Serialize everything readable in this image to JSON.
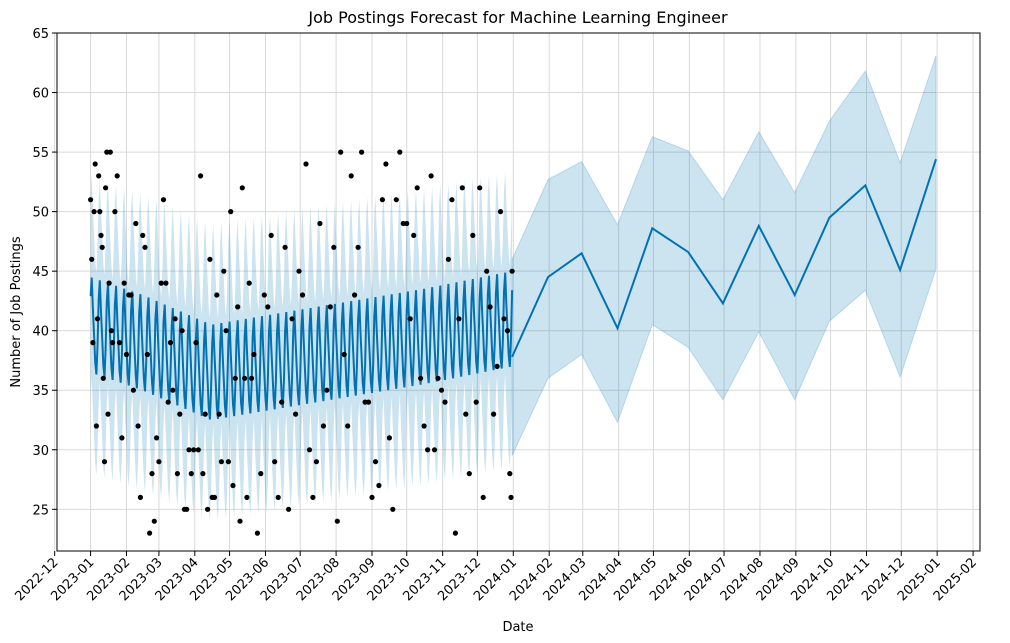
{
  "chart_data": {
    "type": "line",
    "title": "Job Postings Forecast for Machine Learning Engineer",
    "xlabel": "Date",
    "ylabel": "Number of Job Postings",
    "ylim": [
      21.5,
      65
    ],
    "xlim": [
      "2022-12-03",
      "2025-02-07"
    ],
    "grid": true,
    "x_tick_labels": [
      "2022-12",
      "2023-01",
      "2023-02",
      "2023-03",
      "2023-04",
      "2023-05",
      "2023-06",
      "2023-07",
      "2023-08",
      "2023-09",
      "2023-10",
      "2023-11",
      "2023-12",
      "2024-01",
      "2024-02",
      "2024-03",
      "2024-04",
      "2024-05",
      "2024-06",
      "2024-07",
      "2024-08",
      "2024-09",
      "2024-10",
      "2024-11",
      "2024-12",
      "2025-01",
      "2025-02"
    ],
    "y_ticks": [
      25,
      30,
      35,
      40,
      45,
      50,
      55,
      60,
      65
    ],
    "colors": {
      "forecast_line": "#0072B2",
      "uncertainty_band": "#0072B2",
      "observed_points": "#000000",
      "grid": "#d9d9d9"
    },
    "history_period": {
      "start": "2023-01-01",
      "end": "2023-12-31",
      "frequency": "daily"
    },
    "history_trend": [
      {
        "date": "2023-01-01",
        "center": 40.5,
        "half_amplitude": 4.0
      },
      {
        "date": "2023-02-15",
        "center": 39.0,
        "half_amplitude": 4.0
      },
      {
        "date": "2023-04-15",
        "center": 36.5,
        "half_amplitude": 4.0
      },
      {
        "date": "2023-06-15",
        "center": 37.5,
        "half_amplitude": 4.0
      },
      {
        "date": "2023-08-15",
        "center": 38.5,
        "half_amplitude": 4.0
      },
      {
        "date": "2023-10-15",
        "center": 39.5,
        "half_amplitude": 4.0
      },
      {
        "date": "2023-12-31",
        "center": 41.0,
        "half_amplitude": 4.0
      }
    ],
    "history_band_halfwidth": 8.5,
    "series": [
      {
        "values": [
          {
            "date": "2023-12-31",
            "yhat": 37.8,
            "lower": 29.5,
            "upper": 46.0
          },
          {
            "date": "2024-01-31",
            "yhat": 44.5,
            "lower": 36.0,
            "upper": 52.7
          },
          {
            "date": "2024-02-29",
            "yhat": 46.5,
            "lower": 38.0,
            "upper": 54.2
          },
          {
            "date": "2024-03-31",
            "yhat": 40.2,
            "lower": 32.3,
            "upper": 48.9
          },
          {
            "date": "2024-04-30",
            "yhat": 48.6,
            "lower": 40.5,
            "upper": 56.3
          },
          {
            "date": "2024-05-31",
            "yhat": 46.6,
            "lower": 38.6,
            "upper": 55.1
          },
          {
            "date": "2024-06-30",
            "yhat": 42.3,
            "lower": 34.2,
            "upper": 51.0
          },
          {
            "date": "2024-07-31",
            "yhat": 48.8,
            "lower": 39.9,
            "upper": 56.7
          },
          {
            "date": "2024-08-31",
            "yhat": 43.0,
            "lower": 34.2,
            "upper": 51.6
          },
          {
            "date": "2024-09-30",
            "yhat": 49.5,
            "lower": 40.8,
            "upper": 57.6
          },
          {
            "date": "2024-10-31",
            "yhat": 52.2,
            "lower": 43.4,
            "upper": 61.8
          },
          {
            "date": "2024-11-30",
            "yhat": 45.1,
            "lower": 36.1,
            "upper": 54.1
          },
          {
            "date": "2024-12-31",
            "yhat": 54.4,
            "lower": 45.2,
            "upper": 63.1
          }
        ]
      }
    ],
    "observed_points": [
      [
        "2023-01-01",
        51
      ],
      [
        "2023-01-02",
        46
      ],
      [
        "2023-01-03",
        39
      ],
      [
        "2023-01-04",
        50
      ],
      [
        "2023-01-05",
        54
      ],
      [
        "2023-01-06",
        32
      ],
      [
        "2023-01-07",
        41
      ],
      [
        "2023-01-08",
        53
      ],
      [
        "2023-01-09",
        50
      ],
      [
        "2023-01-10",
        48
      ],
      [
        "2023-01-11",
        47
      ],
      [
        "2023-01-12",
        36
      ],
      [
        "2023-01-13",
        29
      ],
      [
        "2023-01-14",
        52
      ],
      [
        "2023-01-15",
        55
      ],
      [
        "2023-01-16",
        33
      ],
      [
        "2023-01-17",
        44
      ],
      [
        "2023-01-18",
        55
      ],
      [
        "2023-01-19",
        40
      ],
      [
        "2023-01-20",
        39
      ],
      [
        "2023-01-22",
        50
      ],
      [
        "2023-01-24",
        53
      ],
      [
        "2023-01-26",
        39
      ],
      [
        "2023-01-28",
        31
      ],
      [
        "2023-01-30",
        44
      ],
      [
        "2023-02-01",
        38
      ],
      [
        "2023-02-03",
        43
      ],
      [
        "2023-02-05",
        43
      ],
      [
        "2023-02-07",
        35
      ],
      [
        "2023-02-09",
        49
      ],
      [
        "2023-02-11",
        32
      ],
      [
        "2023-02-13",
        26
      ],
      [
        "2023-02-15",
        48
      ],
      [
        "2023-02-17",
        47
      ],
      [
        "2023-02-19",
        38
      ],
      [
        "2023-02-21",
        23
      ],
      [
        "2023-02-23",
        28
      ],
      [
        "2023-02-25",
        24
      ],
      [
        "2023-02-27",
        31
      ],
      [
        "2023-03-01",
        29
      ],
      [
        "2023-03-03",
        44
      ],
      [
        "2023-03-05",
        51
      ],
      [
        "2023-03-07",
        44
      ],
      [
        "2023-03-09",
        34
      ],
      [
        "2023-03-11",
        39
      ],
      [
        "2023-03-13",
        35
      ],
      [
        "2023-03-15",
        41
      ],
      [
        "2023-03-17",
        28
      ],
      [
        "2023-03-19",
        33
      ],
      [
        "2023-03-21",
        40
      ],
      [
        "2023-03-23",
        25
      ],
      [
        "2023-03-25",
        25
      ],
      [
        "2023-03-27",
        30
      ],
      [
        "2023-03-29",
        28
      ],
      [
        "2023-03-31",
        30
      ],
      [
        "2023-04-02",
        39
      ],
      [
        "2023-04-04",
        30
      ],
      [
        "2023-04-06",
        53
      ],
      [
        "2023-04-08",
        28
      ],
      [
        "2023-04-10",
        33
      ],
      [
        "2023-04-12",
        25
      ],
      [
        "2023-04-14",
        46
      ],
      [
        "2023-04-16",
        26
      ],
      [
        "2023-04-18",
        26
      ],
      [
        "2023-04-20",
        43
      ],
      [
        "2023-04-22",
        33
      ],
      [
        "2023-04-24",
        29
      ],
      [
        "2023-04-26",
        45
      ],
      [
        "2023-04-28",
        40
      ],
      [
        "2023-04-30",
        29
      ],
      [
        "2023-05-02",
        50
      ],
      [
        "2023-05-04",
        27
      ],
      [
        "2023-05-06",
        36
      ],
      [
        "2023-05-08",
        42
      ],
      [
        "2023-05-10",
        24
      ],
      [
        "2023-05-12",
        52
      ],
      [
        "2023-05-14",
        36
      ],
      [
        "2023-05-16",
        26
      ],
      [
        "2023-05-18",
        44
      ],
      [
        "2023-05-20",
        36
      ],
      [
        "2023-05-22",
        38
      ],
      [
        "2023-05-25",
        23
      ],
      [
        "2023-05-28",
        28
      ],
      [
        "2023-05-31",
        43
      ],
      [
        "2023-06-03",
        42
      ],
      [
        "2023-06-06",
        48
      ],
      [
        "2023-06-09",
        29
      ],
      [
        "2023-06-12",
        26
      ],
      [
        "2023-06-15",
        34
      ],
      [
        "2023-06-18",
        47
      ],
      [
        "2023-06-21",
        25
      ],
      [
        "2023-06-24",
        41
      ],
      [
        "2023-06-27",
        33
      ],
      [
        "2023-06-30",
        45
      ],
      [
        "2023-07-03",
        43
      ],
      [
        "2023-07-06",
        54
      ],
      [
        "2023-07-09",
        30
      ],
      [
        "2023-07-12",
        26
      ],
      [
        "2023-07-15",
        29
      ],
      [
        "2023-07-18",
        49
      ],
      [
        "2023-07-21",
        32
      ],
      [
        "2023-07-24",
        35
      ],
      [
        "2023-07-27",
        42
      ],
      [
        "2023-07-30",
        47
      ],
      [
        "2023-08-02",
        24
      ],
      [
        "2023-08-05",
        55
      ],
      [
        "2023-08-08",
        38
      ],
      [
        "2023-08-11",
        32
      ],
      [
        "2023-08-14",
        53
      ],
      [
        "2023-08-17",
        43
      ],
      [
        "2023-08-20",
        47
      ],
      [
        "2023-08-23",
        55
      ],
      [
        "2023-08-26",
        34
      ],
      [
        "2023-08-29",
        34
      ],
      [
        "2023-09-01",
        26
      ],
      [
        "2023-09-04",
        29
      ],
      [
        "2023-09-07",
        27
      ],
      [
        "2023-09-10",
        51
      ],
      [
        "2023-09-13",
        54
      ],
      [
        "2023-09-16",
        31
      ],
      [
        "2023-09-19",
        25
      ],
      [
        "2023-09-22",
        51
      ],
      [
        "2023-09-25",
        55
      ],
      [
        "2023-09-28",
        49
      ],
      [
        "2023-10-01",
        49
      ],
      [
        "2023-10-04",
        41
      ],
      [
        "2023-10-07",
        48
      ],
      [
        "2023-10-10",
        52
      ],
      [
        "2023-10-13",
        36
      ],
      [
        "2023-10-16",
        32
      ],
      [
        "2023-10-19",
        30
      ],
      [
        "2023-10-22",
        53
      ],
      [
        "2023-10-25",
        30
      ],
      [
        "2023-10-28",
        36
      ],
      [
        "2023-10-31",
        35
      ],
      [
        "2023-11-03",
        34
      ],
      [
        "2023-11-06",
        46
      ],
      [
        "2023-11-09",
        51
      ],
      [
        "2023-11-12",
        23
      ],
      [
        "2023-11-15",
        41
      ],
      [
        "2023-11-18",
        52
      ],
      [
        "2023-11-21",
        33
      ],
      [
        "2023-11-24",
        28
      ],
      [
        "2023-11-27",
        48
      ],
      [
        "2023-11-30",
        34
      ],
      [
        "2023-12-03",
        52
      ],
      [
        "2023-12-06",
        26
      ],
      [
        "2023-12-09",
        45
      ],
      [
        "2023-12-12",
        42
      ],
      [
        "2023-12-15",
        33
      ],
      [
        "2023-12-18",
        37
      ],
      [
        "2023-12-21",
        50
      ],
      [
        "2023-12-24",
        41
      ],
      [
        "2023-12-27",
        40
      ],
      [
        "2023-12-29",
        28
      ],
      [
        "2023-12-30",
        26
      ],
      [
        "2023-12-31",
        45
      ]
    ]
  }
}
